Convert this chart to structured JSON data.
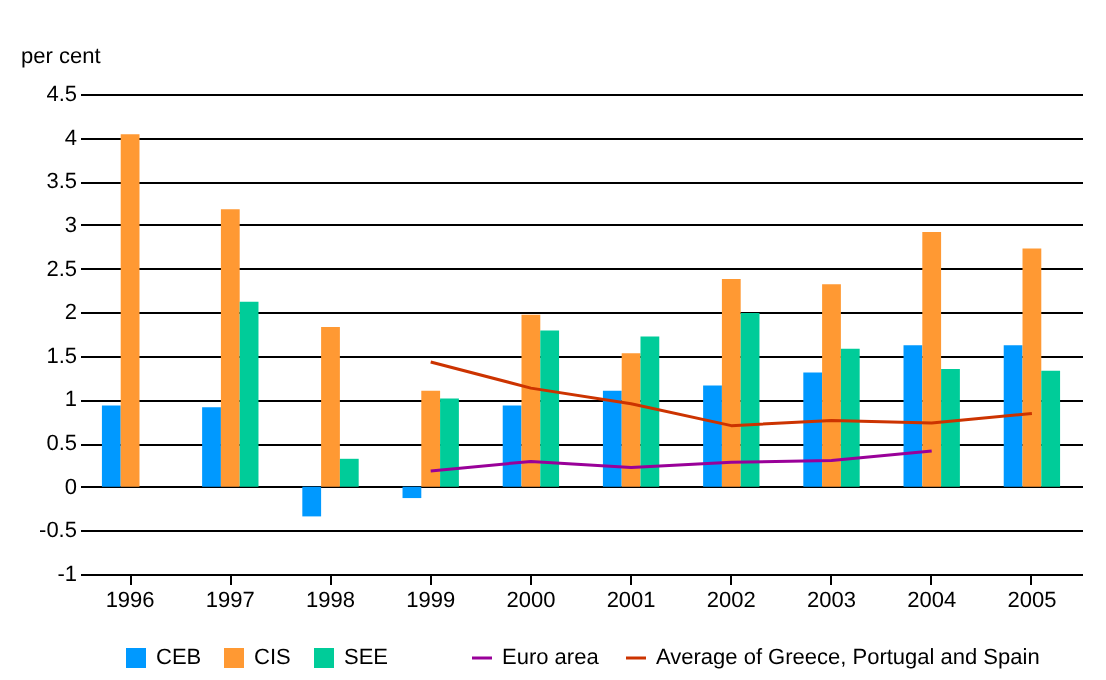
{
  "chart_data": {
    "type": "bar",
    "ylabel": "per cent",
    "categories": [
      "1996",
      "1997",
      "1998",
      "1999",
      "2000",
      "2001",
      "2002",
      "2003",
      "2004",
      "2005"
    ],
    "series": [
      {
        "name": "CEB",
        "color": "#0099ff",
        "values": [
          0.93,
          0.91,
          -0.34,
          -0.13,
          0.93,
          1.1,
          1.16,
          1.31,
          1.62,
          1.62
        ]
      },
      {
        "name": "CIS",
        "color": "#ff9933",
        "values": [
          4.04,
          3.18,
          1.83,
          1.1,
          1.97,
          1.53,
          2.38,
          2.32,
          2.92,
          2.73
        ]
      },
      {
        "name": "SEE",
        "color": "#00cc99",
        "values": [
          null,
          2.12,
          0.32,
          1.01,
          1.79,
          1.72,
          1.99,
          1.58,
          1.35,
          1.33
        ]
      },
      {
        "name": "Euro area",
        "type": "line",
        "color": "#990099",
        "values": [
          null,
          null,
          null,
          0.18,
          0.29,
          0.22,
          0.28,
          0.3,
          0.41,
          null
        ]
      },
      {
        "name": "Average of Greece, Portugal and Spain",
        "type": "line",
        "color": "#cc3300",
        "values": [
          null,
          null,
          null,
          1.43,
          1.13,
          0.95,
          0.7,
          0.76,
          0.73,
          0.84
        ]
      }
    ],
    "ylim": [
      -1,
      4.5
    ],
    "yticks": [
      -1,
      -0.5,
      0,
      0.5,
      1,
      1.5,
      2,
      2.5,
      3,
      3.5,
      4,
      4.5
    ],
    "grid": "y",
    "legend": "bottom"
  }
}
